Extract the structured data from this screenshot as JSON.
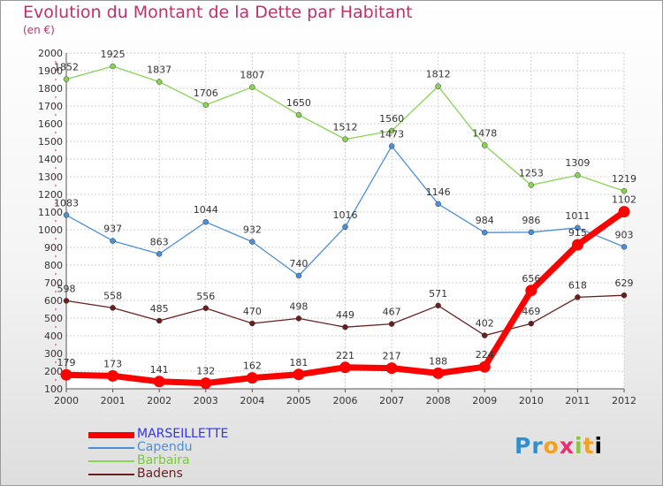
{
  "chart_data": {
    "type": "line",
    "title": "Evolution du Montant de la Dette par Habitant",
    "subtitle": "(en €)",
    "x": [
      "2000",
      "2001",
      "2002",
      "2003",
      "2004",
      "2005",
      "2006",
      "2007",
      "2008",
      "2009",
      "2010",
      "2011",
      "2012"
    ],
    "y_ticks": [
      "100",
      "200",
      "300",
      "400",
      "500",
      "600",
      "700",
      "800",
      "900",
      "1000",
      "1100",
      "1200",
      "1300",
      "1400",
      "1500",
      "1600",
      "1700",
      "1800",
      "1900",
      "2000"
    ],
    "ylim": [
      100,
      2000
    ],
    "grid": true,
    "legend_position": "bottom-left",
    "series": [
      {
        "name": "MARSEILLETTE",
        "color": "#ff0000",
        "label_color": "#3333ee",
        "width": 7,
        "values": [
          179,
          173,
          141,
          132,
          162,
          181,
          221,
          217,
          188,
          224,
          656,
          915,
          1102
        ],
        "labels": [
          "179",
          "173",
          "141",
          "132",
          "162",
          "181",
          "221",
          "217",
          "188",
          "224",
          "656",
          "915",
          "1102"
        ]
      },
      {
        "name": "Capendu",
        "color": "#4a90d9",
        "label_color": "#4a90d9",
        "width": 1.3,
        "values": [
          1083,
          937,
          863,
          1044,
          932,
          740,
          1016,
          1473,
          1146,
          984,
          986,
          1011,
          903
        ],
        "labels": [
          "1083",
          "937",
          "863",
          "1044",
          "932",
          "740",
          "1016",
          "1473",
          "1146",
          "984",
          "986",
          "1011",
          "903"
        ]
      },
      {
        "name": "Barbaira",
        "color": "#88d452",
        "label_color": "#7cc642",
        "width": 1.3,
        "values": [
          1852,
          1925,
          1837,
          1706,
          1807,
          1650,
          1512,
          1560,
          1812,
          1478,
          1253,
          1309,
          1219
        ],
        "labels": [
          "1852",
          "1925",
          "1837",
          "1706",
          "1807",
          "1650",
          "1512",
          "1560",
          "1812",
          "1478",
          "1253",
          "1309",
          "1219"
        ]
      },
      {
        "name": "Badens",
        "color": "#6b1e1e",
        "label_color": "#6b1e1e",
        "width": 1.3,
        "values": [
          598,
          558,
          485,
          556,
          470,
          498,
          449,
          467,
          571,
          402,
          469,
          618,
          629
        ],
        "labels": [
          "598",
          "558",
          "485",
          "556",
          "470",
          "498",
          "449",
          "467",
          "571",
          "402",
          "469",
          "618",
          "629"
        ]
      }
    ]
  },
  "logo": {
    "letters": [
      "P",
      "r",
      "o",
      "x",
      "i",
      "t",
      "i"
    ]
  }
}
